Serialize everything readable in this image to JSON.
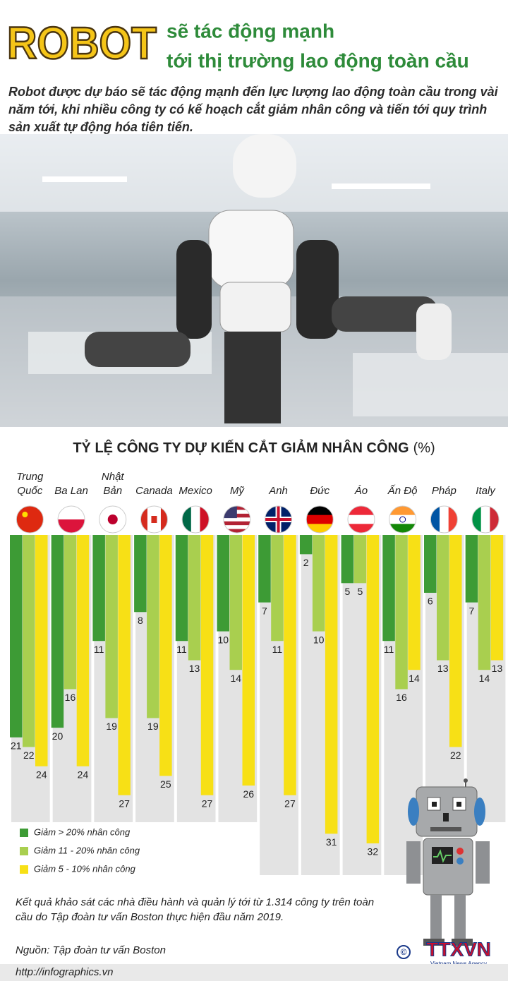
{
  "header": {
    "brand": "ROBOT",
    "title_lines": [
      "sẽ tác động mạnh",
      "tới thị trường lao động toàn cầu"
    ]
  },
  "intro": "Robot được dự báo sẽ tác động mạnh đến lực lượng lao động toàn cầu trong vài năm tới, khi nhiều công ty có kế hoạch cắt giảm nhân công và tiến tới quy trình sản xuất tự động hóa tiên tiến.",
  "chart_data": {
    "type": "bar",
    "title": "TỶ LỆ CÔNG TY DỰ KIẾN CẮT GIẢM NHÂN CÔNG",
    "unit": "(%)",
    "categories": [
      "Trung Quốc",
      "Ba Lan",
      "Nhật Bản",
      "Canada",
      "Mexico",
      "Mỹ",
      "Anh",
      "Đức",
      "Áo",
      "Ấn Độ",
      "Pháp",
      "Italy"
    ],
    "ylim": [
      0,
      32
    ],
    "series": [
      {
        "name": "Giảm > 20% nhân công",
        "color": "#3d9b35",
        "values": [
          21,
          20,
          11,
          8,
          11,
          10,
          7,
          2,
          5,
          11,
          6,
          7
        ]
      },
      {
        "name": "Giảm 11 - 20% nhân công",
        "color": "#a9cf4f",
        "values": [
          22,
          16,
          19,
          19,
          13,
          14,
          11,
          10,
          5,
          16,
          13,
          14
        ]
      },
      {
        "name": "Giảm 5 - 10% nhân công",
        "color": "#f7e016",
        "values": [
          24,
          24,
          27,
          25,
          27,
          26,
          27,
          31,
          32,
          14,
          22,
          13
        ]
      }
    ]
  },
  "note": "Kết quả khảo sát các nhà điều hành và quản lý tới từ 1.314 công ty trên toàn cầu do Tập đoàn tư vấn Boston thực hiện đầu năm 2019.",
  "source": "Nguồn: Tập đoàn tư vấn Boston",
  "url": "http://infographics.vn",
  "logo": {
    "copyright": "©",
    "name": "TTXVN",
    "subtitle": "Vietnam News Agency"
  }
}
